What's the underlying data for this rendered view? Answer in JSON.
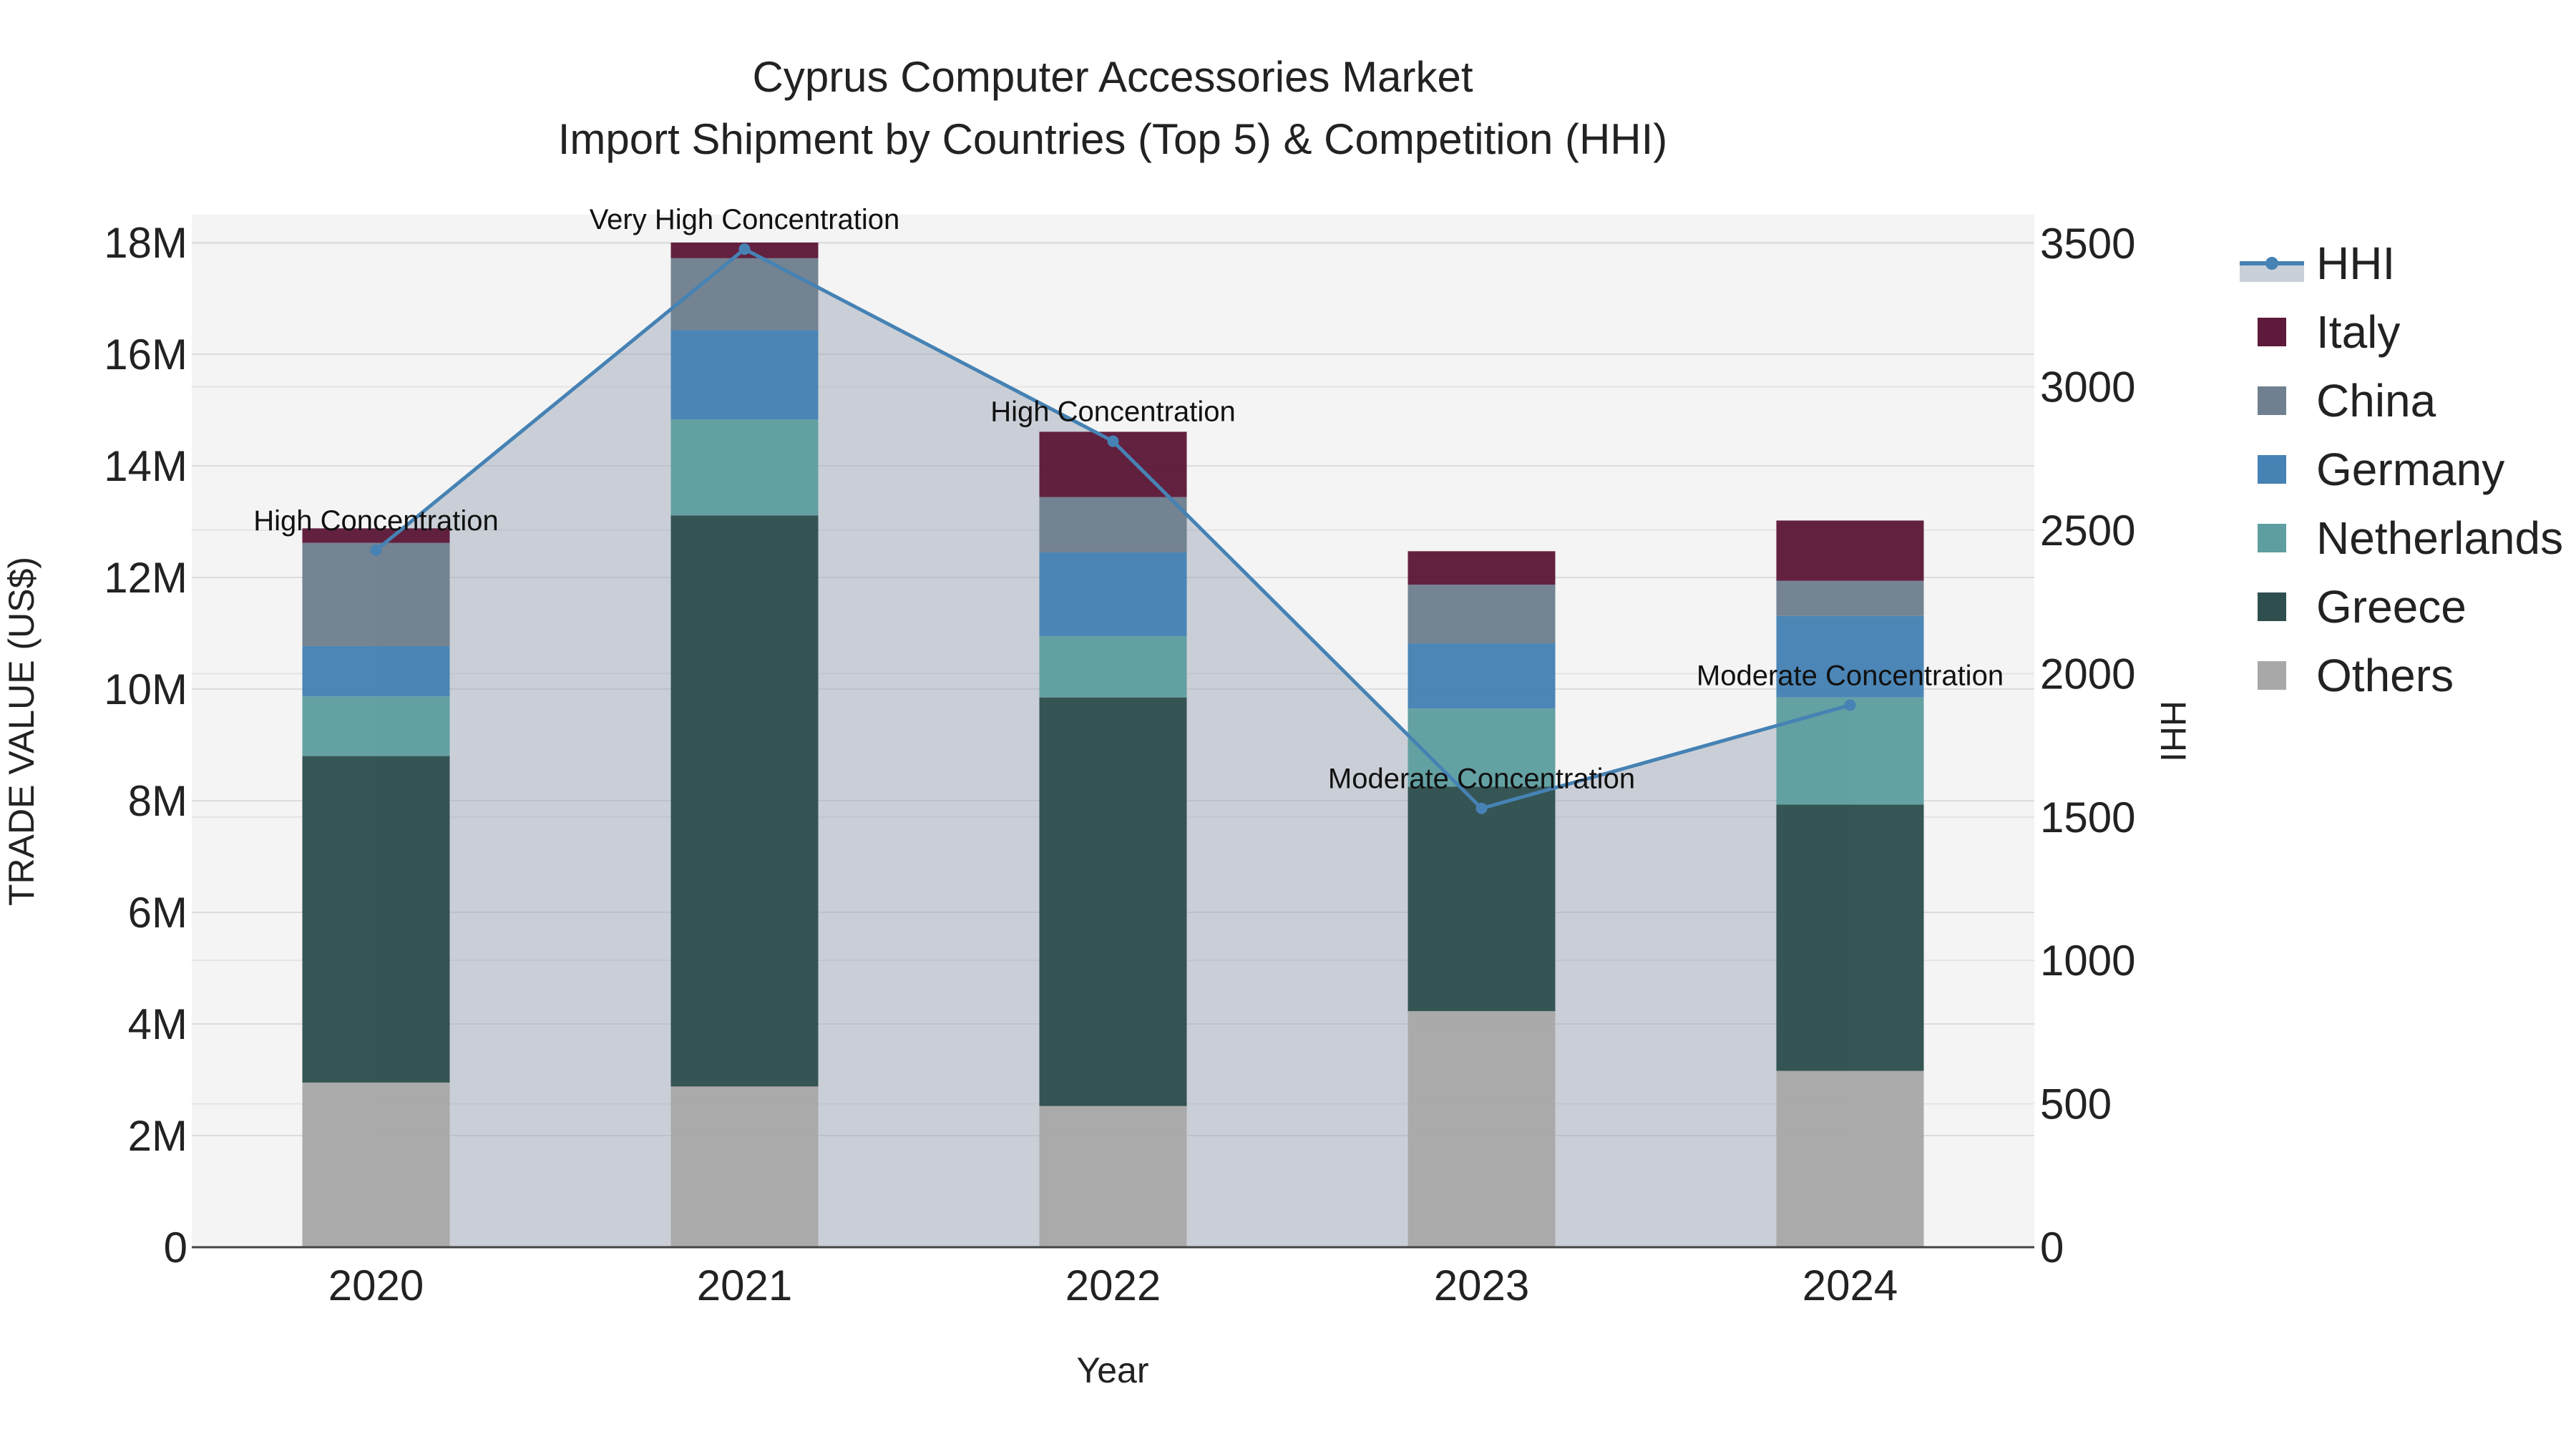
{
  "chart_data": {
    "type": "bar",
    "stacked": true,
    "title": "Cyprus Computer Accessories Market",
    "subtitle": "Import Shipment by Countries (Top 5) & Competition (HHI)",
    "xlabel": "Year",
    "ylabel": "TRADE VALUE (US$)",
    "y2label": "HHI",
    "categories": [
      "2020",
      "2021",
      "2022",
      "2023",
      "2024"
    ],
    "ylim": [
      0,
      18500000
    ],
    "y2lim": [
      0,
      3600
    ],
    "yticks": [
      0,
      2000000,
      4000000,
      6000000,
      8000000,
      10000000,
      12000000,
      14000000,
      16000000,
      18000000
    ],
    "ytick_labels": [
      "0",
      "2M",
      "4M",
      "6M",
      "8M",
      "10M",
      "12M",
      "14M",
      "16M",
      "18M"
    ],
    "y2ticks": [
      0,
      500,
      1000,
      1500,
      2000,
      2500,
      3000,
      3500
    ],
    "y2tick_labels": [
      "0",
      "500",
      "1000",
      "1500",
      "2000",
      "2500",
      "3000",
      "3500"
    ],
    "series": [
      {
        "name": "Others",
        "color": "#a8a8a8",
        "values": [
          2950000,
          2880000,
          2530000,
          4230000,
          3160000
        ]
      },
      {
        "name": "Greece",
        "color": "#2f4f4f",
        "values": [
          5850000,
          10230000,
          7320000,
          4020000,
          4770000
        ]
      },
      {
        "name": "Netherlands",
        "color": "#5f9ea0",
        "values": [
          1070000,
          1720000,
          1100000,
          1400000,
          1920000
        ]
      },
      {
        "name": "Germany",
        "color": "#4682b4",
        "values": [
          900000,
          1600000,
          1500000,
          1170000,
          1460000
        ]
      },
      {
        "name": "China",
        "color": "#708090",
        "values": [
          1850000,
          1290000,
          990000,
          1050000,
          630000
        ]
      },
      {
        "name": "Italy",
        "color": "#5e1a3a",
        "values": [
          260000,
          280000,
          1170000,
          600000,
          1080000
        ]
      }
    ],
    "hhi": {
      "name": "HHI",
      "color": "#4682b4",
      "values": [
        2430,
        3480,
        2810,
        1530,
        1890
      ],
      "annotations": [
        "High Concentration",
        "Very High Concentration",
        "High Concentration",
        "Moderate Concentration",
        "Moderate Concentration"
      ]
    },
    "legend": [
      "HHI",
      "Italy",
      "China",
      "Germany",
      "Netherlands",
      "Greece",
      "Others"
    ],
    "legend_position": "right",
    "grid": true
  }
}
